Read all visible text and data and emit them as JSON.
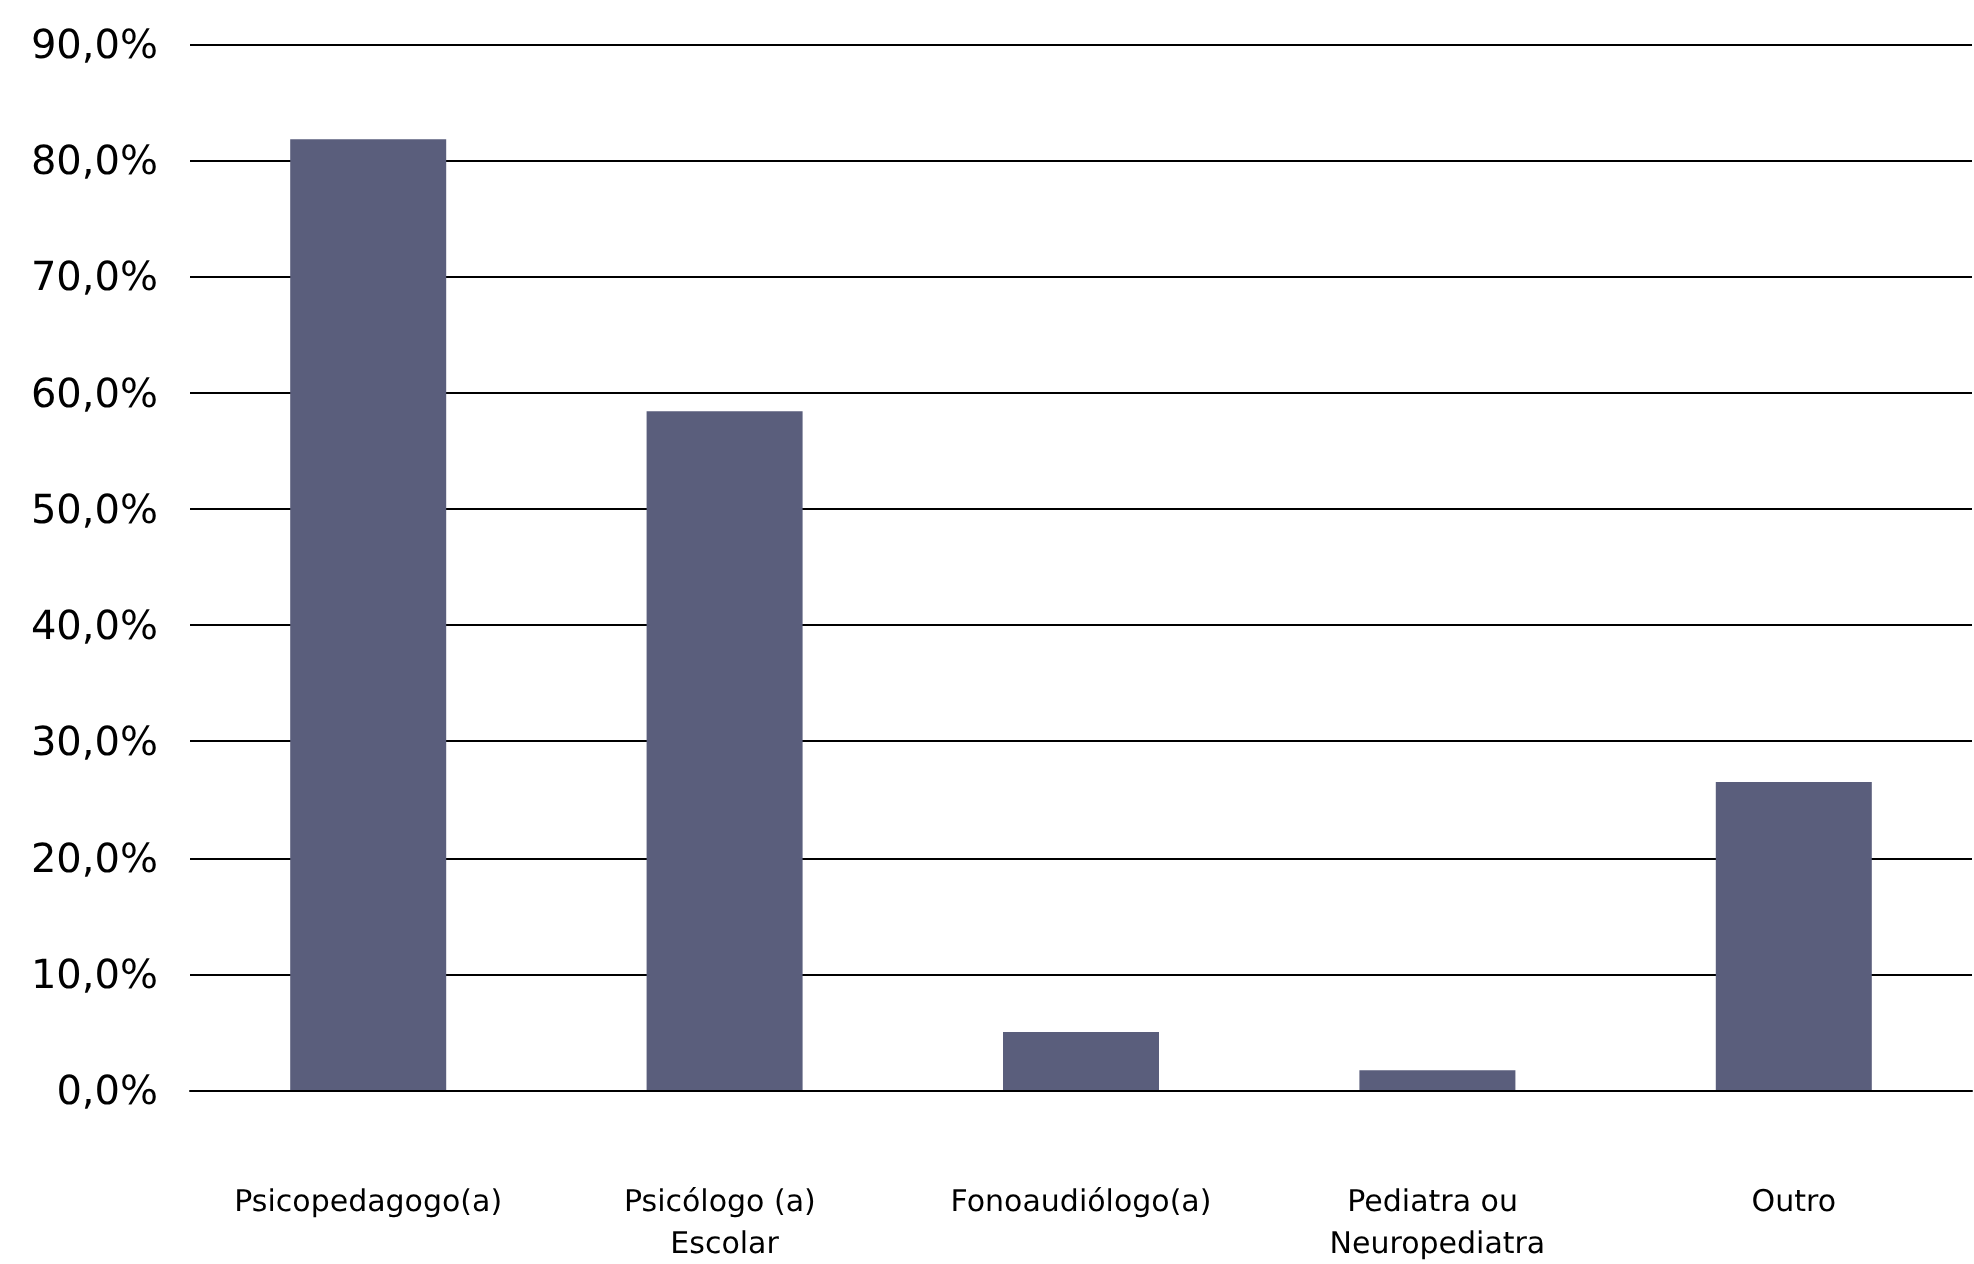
{
  "chart_data": {
    "type": "bar",
    "categories": [
      "Psicopedagogo(a)",
      "Psicólogo (a) Escolar",
      "Fonoaudiólogo(a)",
      "Pediatra ou Neuropediatra",
      "Outro"
    ],
    "values": [
      81.8,
      58.4,
      5.0,
      1.7,
      26.5
    ],
    "color": "#5a5e7c",
    "ylim": [
      0,
      90
    ],
    "yticks": [
      {
        "value": 0,
        "label": "0,0%"
      },
      {
        "value": 10,
        "label": "10,0%"
      },
      {
        "value": 20,
        "label": "20,0%"
      },
      {
        "value": 30,
        "label": "30,0%"
      },
      {
        "value": 40,
        "label": "40,0%"
      },
      {
        "value": 50,
        "label": "50,0%"
      },
      {
        "value": 60,
        "label": "60,0%"
      },
      {
        "value": 70,
        "label": "70,0%"
      },
      {
        "value": 80,
        "label": "80,0%"
      },
      {
        "value": 90,
        "label": "90,0%"
      }
    ],
    "grid": true
  }
}
